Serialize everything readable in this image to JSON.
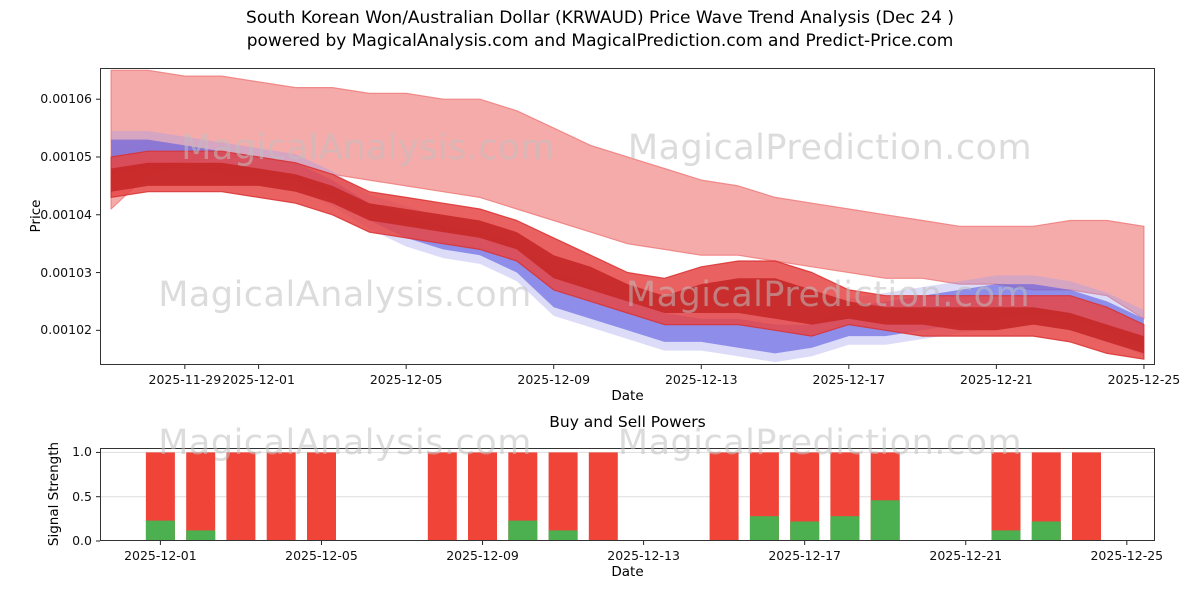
{
  "figure": {
    "title": "South Korean Won/Australian Dollar (KRWAUD) Price Wave Trend Analysis (Dec 24 )",
    "subtitle": "powered by MagicalAnalysis.com and MagicalPrediction.com and Predict-Price.com"
  },
  "watermarks": {
    "left": "MagicalAnalysis.com",
    "right": "MagicalPrediction.com"
  },
  "chart_data": [
    {
      "type": "area",
      "name": "price_wave_trend",
      "xlabel": "Date",
      "ylabel": "Price",
      "x_epoch": "2025-11-27",
      "xlim_days": [
        -0.3,
        28.3
      ],
      "ylim": [
        0.001014,
        0.0010654
      ],
      "yticks": [
        0.00102,
        0.00103,
        0.00104,
        0.00105,
        0.00106
      ],
      "ytick_decimals": 5,
      "x_tick_dates": [
        "2025-11-29",
        "2025-12-01",
        "2025-12-05",
        "2025-12-09",
        "2025-12-13",
        "2025-12-17",
        "2025-12-21",
        "2025-12-25"
      ],
      "grid": false,
      "legend": "none",
      "dates": [
        "2025-11-27",
        "2025-11-28",
        "2025-11-29",
        "2025-11-30",
        "2025-12-01",
        "2025-12-02",
        "2025-12-03",
        "2025-12-04",
        "2025-12-05",
        "2025-12-06",
        "2025-12-07",
        "2025-12-08",
        "2025-12-09",
        "2025-12-10",
        "2025-12-11",
        "2025-12-12",
        "2025-12-13",
        "2025-12-14",
        "2025-12-15",
        "2025-12-16",
        "2025-12-17",
        "2025-12-18",
        "2025-12-19",
        "2025-12-20",
        "2025-12-21",
        "2025-12-22",
        "2025-12-23",
        "2025-12-24",
        "2025-12-25"
      ],
      "bands": [
        {
          "name": "forecast-envelope",
          "color": "#f49c9c",
          "stroke": "#ee7b7b",
          "opacity": 0.85,
          "upper": [
            0.001065,
            0.001065,
            0.001064,
            0.001064,
            0.001063,
            0.001062,
            0.001062,
            0.001061,
            0.001061,
            0.00106,
            0.00106,
            0.001058,
            0.001055,
            0.001052,
            0.00105,
            0.001048,
            0.001046,
            0.001045,
            0.001043,
            0.001042,
            0.001041,
            0.00104,
            0.001039,
            0.001038,
            0.001038,
            0.001038,
            0.001039,
            0.001039,
            0.001038
          ],
          "lower": [
            0.001041,
            0.001047,
            0.001049,
            0.00105,
            0.00105,
            0.001049,
            0.001047,
            0.001046,
            0.001045,
            0.001044,
            0.001043,
            0.001041,
            0.001039,
            0.001037,
            0.001035,
            0.001034,
            0.001033,
            0.001033,
            0.001032,
            0.001031,
            0.00103,
            0.001029,
            0.001029,
            0.001028,
            0.001028,
            0.001027,
            0.001027,
            0.001026,
            0.001022
          ]
        },
        {
          "name": "wave-blue-outer",
          "color": "#9b9bef",
          "opacity": 0.35,
          "upper": [
            0.0010545,
            0.0010545,
            0.0010535,
            0.0010525,
            0.0010515,
            0.0010505,
            0.0010475,
            0.0010435,
            0.0010415,
            0.0010395,
            0.0010385,
            0.0010365,
            0.0010315,
            0.0010295,
            0.0010265,
            0.0010245,
            0.0010235,
            0.0010235,
            0.0010225,
            0.0010225,
            0.0010255,
            0.0010265,
            0.0010275,
            0.0010285,
            0.0010295,
            0.0010295,
            0.0010285,
            0.0010265,
            0.0010235
          ],
          "lower": [
            0.0010455,
            0.0010465,
            0.0010465,
            0.0010455,
            0.0010455,
            0.0010445,
            0.0010415,
            0.0010375,
            0.0010345,
            0.0010325,
            0.0010315,
            0.0010285,
            0.0010225,
            0.0010205,
            0.0010185,
            0.0010165,
            0.0010165,
            0.0010155,
            0.0010145,
            0.0010155,
            0.0010175,
            0.0010175,
            0.0010185,
            0.0010195,
            0.0010205,
            0.0010215,
            0.0010205,
            0.0010185,
            0.0010155
          ]
        },
        {
          "name": "wave-blue-core",
          "color": "#5a5ae0",
          "opacity": 0.6,
          "upper": [
            0.001053,
            0.001053,
            0.001052,
            0.001051,
            0.00105,
            0.001049,
            0.001046,
            0.001042,
            0.00104,
            0.001038,
            0.001037,
            0.001035,
            0.00103,
            0.001028,
            0.001025,
            0.001023,
            0.001022,
            0.001022,
            0.001021,
            0.001021,
            0.001024,
            0.001025,
            0.001026,
            0.001027,
            0.001028,
            0.001028,
            0.001027,
            0.001025,
            0.001022
          ],
          "lower": [
            0.001047,
            0.001048,
            0.001048,
            0.001047,
            0.001047,
            0.001046,
            0.001043,
            0.001039,
            0.001036,
            0.001034,
            0.001033,
            0.00103,
            0.001024,
            0.001022,
            0.00102,
            0.001018,
            0.001018,
            0.001017,
            0.001016,
            0.001017,
            0.001019,
            0.001019,
            0.00102,
            0.001021,
            0.001022,
            0.001023,
            0.001022,
            0.00102,
            0.001017
          ]
        },
        {
          "name": "wave-red-mid",
          "color": "#e64545",
          "stroke": "#d93030",
          "opacity": 0.85,
          "upper": [
            0.00105,
            0.001051,
            0.001051,
            0.001051,
            0.00105,
            0.001049,
            0.001047,
            0.001044,
            0.001043,
            0.001042,
            0.001041,
            0.001039,
            0.001036,
            0.001033,
            0.00103,
            0.001029,
            0.001031,
            0.001032,
            0.001032,
            0.00103,
            0.001027,
            0.001026,
            0.001026,
            0.001026,
            0.001026,
            0.001026,
            0.001026,
            0.001024,
            0.001021
          ],
          "lower": [
            0.001043,
            0.001044,
            0.001044,
            0.001044,
            0.001043,
            0.001042,
            0.00104,
            0.001037,
            0.001036,
            0.001035,
            0.001034,
            0.001032,
            0.001027,
            0.001025,
            0.001023,
            0.001021,
            0.001021,
            0.001021,
            0.00102,
            0.001019,
            0.001021,
            0.00102,
            0.001019,
            0.001019,
            0.001019,
            0.001019,
            0.001018,
            0.001016,
            0.001015
          ]
        },
        {
          "name": "wave-red-core",
          "color": "#c62828",
          "opacity": 0.9,
          "upper": [
            0.001048,
            0.001049,
            0.001049,
            0.001049,
            0.001048,
            0.001047,
            0.001045,
            0.001042,
            0.001041,
            0.00104,
            0.001039,
            0.001037,
            0.001033,
            0.001031,
            0.001028,
            0.001026,
            0.001028,
            0.001029,
            0.001029,
            0.001027,
            0.001025,
            0.001024,
            0.001024,
            0.001024,
            0.001024,
            0.001024,
            0.001023,
            0.001021,
            0.001019
          ],
          "lower": [
            0.001044,
            0.001045,
            0.001045,
            0.001045,
            0.001045,
            0.001044,
            0.001042,
            0.001039,
            0.001038,
            0.001037,
            0.001036,
            0.001034,
            0.001029,
            0.001027,
            0.001025,
            0.001023,
            0.001023,
            0.001023,
            0.001022,
            0.001021,
            0.001022,
            0.001021,
            0.001021,
            0.00102,
            0.00102,
            0.001021,
            0.00102,
            0.001018,
            0.001016
          ]
        }
      ]
    },
    {
      "type": "bar",
      "name": "buy_sell_powers",
      "title": "Buy and Sell Powers",
      "xlabel": "Date",
      "ylabel": "Signal Strength",
      "x_epoch": "2025-11-27",
      "xlim_days": [
        2.5,
        28.7
      ],
      "ylim": [
        0,
        1.05
      ],
      "yticks": [
        0.0,
        0.5,
        1.0
      ],
      "ytick_decimals": 1,
      "x_tick_dates": [
        "2025-12-01",
        "2025-12-05",
        "2025-12-09",
        "2025-12-13",
        "2025-12-17",
        "2025-12-21",
        "2025-12-25"
      ],
      "grid": true,
      "bar_width_days": 0.72,
      "series_colors": {
        "sell": "#f04438",
        "buy": "#4caf50"
      },
      "bars": [
        {
          "date": "2025-12-01",
          "sell": 1.0,
          "buy": 0.23
        },
        {
          "date": "2025-12-02",
          "sell": 1.0,
          "buy": 0.12
        },
        {
          "date": "2025-12-03",
          "sell": 1.0,
          "buy": 0
        },
        {
          "date": "2025-12-04",
          "sell": 1.0,
          "buy": 0
        },
        {
          "date": "2025-12-05",
          "sell": 1.0,
          "buy": 0
        },
        {
          "date": "2025-12-08",
          "sell": 1.0,
          "buy": 0
        },
        {
          "date": "2025-12-09",
          "sell": 1.0,
          "buy": 0
        },
        {
          "date": "2025-12-10",
          "sell": 1.0,
          "buy": 0.23
        },
        {
          "date": "2025-12-11",
          "sell": 1.0,
          "buy": 0.12
        },
        {
          "date": "2025-12-12",
          "sell": 1.0,
          "buy": 0
        },
        {
          "date": "2025-12-15",
          "sell": 1.0,
          "buy": 0
        },
        {
          "date": "2025-12-16",
          "sell": 1.0,
          "buy": 0.28
        },
        {
          "date": "2025-12-17",
          "sell": 1.0,
          "buy": 0.22
        },
        {
          "date": "2025-12-18",
          "sell": 1.0,
          "buy": 0.28
        },
        {
          "date": "2025-12-19",
          "sell": 1.0,
          "buy": 0.46
        },
        {
          "date": "2025-12-22",
          "sell": 1.0,
          "buy": 0.12
        },
        {
          "date": "2025-12-23",
          "sell": 1.0,
          "buy": 0.22
        },
        {
          "date": "2025-12-24",
          "sell": 1.0,
          "buy": 0
        }
      ]
    }
  ]
}
